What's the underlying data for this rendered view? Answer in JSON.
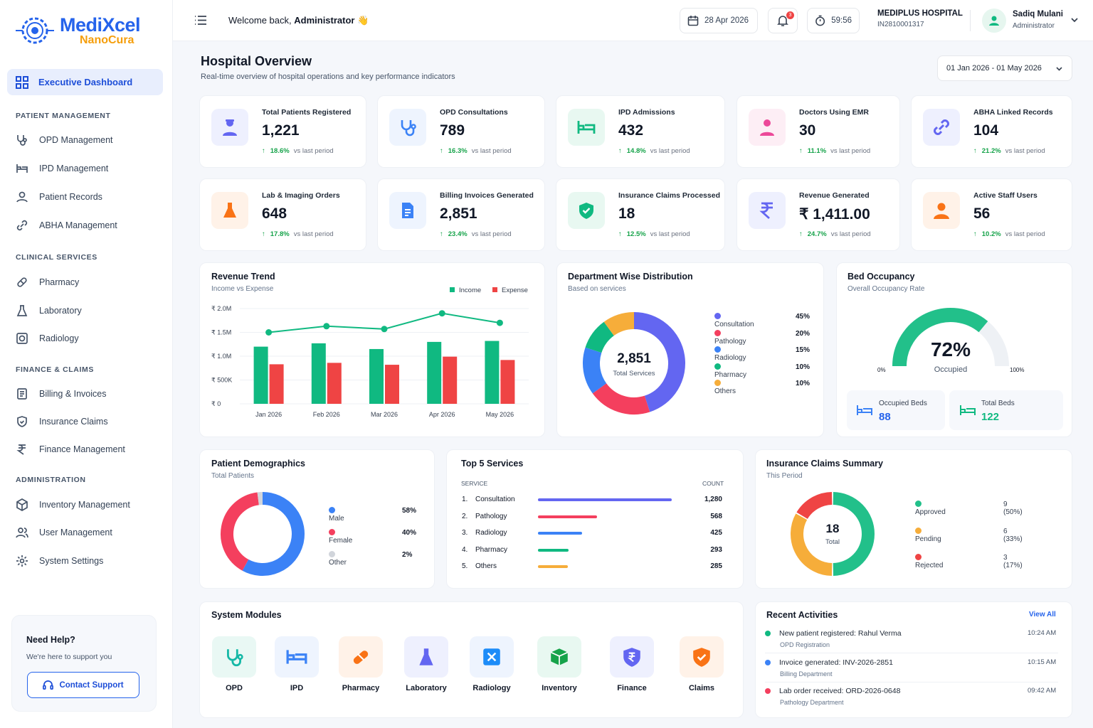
{
  "brand": {
    "name": "MediXcel",
    "sub": "NanoCura"
  },
  "nav": {
    "active": "Executive Dashboard",
    "sections": [
      "PATIENT MANAGEMENT",
      "CLINICAL SERVICES",
      "FINANCE & CLAIMS",
      "ADMINISTRATION"
    ],
    "items": [
      "OPD Management",
      "IPD Management",
      "Patient Records",
      "ABHA Management",
      "Pharmacy",
      "Laboratory",
      "Radiology",
      "Billing & Invoices",
      "Insurance Claims",
      "Finance Management",
      "Inventory Management",
      "User Management",
      "System Settings"
    ]
  },
  "help": {
    "title": "Need Help?",
    "subtitle": "We're here to support you",
    "button": "Contact Support"
  },
  "topbar": {
    "welcome": "Welcome back, ",
    "user_bold": "Administrator",
    "emoji": "👋",
    "date": "28 Apr 2026",
    "notif_count": "3",
    "timer": "59:56",
    "hospital": "MEDIPLUS HOSPITAL",
    "hospital_id": "IN2810001317",
    "user_name": "Sadiq Mulani",
    "user_role": "Administrator"
  },
  "page": {
    "title": "Hospital Overview",
    "subtitle": "Real-time overview of hospital operations and key performance indicators",
    "range": "01 Jan 2026 - 01 May 2026"
  },
  "kpis": [
    {
      "label": "Total Patients Registered",
      "value": "1,221",
      "change": "18.6%",
      "note": "vs last period",
      "icon": "doctor-icon",
      "color": "#6366f1",
      "bg": "#eef0fe"
    },
    {
      "label": "OPD Consultations",
      "value": "789",
      "change": "16.3%",
      "note": "vs last period",
      "icon": "stethoscope-icon",
      "color": "#3b82f6",
      "bg": "#eef4fe"
    },
    {
      "label": "IPD Admissions",
      "value": "432",
      "change": "14.8%",
      "note": "vs last period",
      "icon": "bed-icon",
      "color": "#10b981",
      "bg": "#e8f8f1"
    },
    {
      "label": "Doctors Using EMR",
      "value": "30",
      "change": "11.1%",
      "note": "vs last period",
      "icon": "doctor-emr-icon",
      "color": "#ec4899",
      "bg": "#fdeef5"
    },
    {
      "label": "ABHA Linked Records",
      "value": "104",
      "change": "21.2%",
      "note": "vs last period",
      "icon": "link-icon",
      "color": "#6366f1",
      "bg": "#eef0fe"
    },
    {
      "label": "Lab & Imaging Orders",
      "value": "648",
      "change": "17.8%",
      "note": "vs last period",
      "icon": "flask-icon",
      "color": "#f97316",
      "bg": "#fff2e8"
    },
    {
      "label": "Billing Invoices Generated",
      "value": "2,851",
      "change": "23.4%",
      "note": "vs last period",
      "icon": "invoice-icon",
      "color": "#3b82f6",
      "bg": "#eef4fe"
    },
    {
      "label": "Insurance Claims Processed",
      "value": "18",
      "change": "12.5%",
      "note": "vs last period",
      "icon": "shield-check-icon",
      "color": "#10b981",
      "bg": "#e8f8f1"
    },
    {
      "label": "Revenue Generated",
      "value": "₹ 1,411.00",
      "change": "24.7%",
      "note": "vs last period",
      "icon": "rupee-icon",
      "color": "#6366f1",
      "bg": "#eef0fe"
    },
    {
      "label": "Active Staff Users",
      "value": "56",
      "change": "10.2%",
      "note": "vs last period",
      "icon": "user-icon",
      "color": "#f97316",
      "bg": "#fff2e8"
    }
  ],
  "revenue": {
    "title": "Revenue Trend",
    "subtitle": "Income vs Expense",
    "legend_income": "Income",
    "legend_expense": "Expense"
  },
  "chart_data": [
    {
      "type": "bar",
      "title": "Revenue Trend",
      "subtitle": "Income vs Expense",
      "categories": [
        "Jan 2026",
        "Feb 2026",
        "Mar 2026",
        "Apr 2026",
        "May 2026"
      ],
      "series": [
        {
          "name": "Income",
          "values": [
            1200000,
            1270000,
            1150000,
            1300000,
            1320000
          ],
          "color": "#10b981"
        },
        {
          "name": "Expense",
          "values": [
            830000,
            860000,
            820000,
            990000,
            920000
          ],
          "color": "#ef4444"
        }
      ],
      "line": [
        1500000,
        1630000,
        1570000,
        1900000,
        1700000
      ],
      "yticks": [
        "₹ 0",
        "₹ 500K",
        "₹ 1.0M",
        "₹ 1.5M",
        "₹ 2.0M"
      ],
      "ylim": [
        0,
        2000000
      ],
      "grid": true,
      "legend": "top-right"
    },
    {
      "type": "pie",
      "title": "Department Wise Distribution",
      "center_value": "2,851",
      "center_label": "Total Services",
      "labels": [
        "Consultation",
        "Pathology",
        "Radiology",
        "Pharmacy",
        "Others"
      ],
      "values": [
        45,
        20,
        15,
        10,
        10
      ],
      "colors": [
        "#6366f1",
        "#f43f5e",
        "#3b82f6",
        "#10b981",
        "#f6ad3a"
      ]
    },
    {
      "type": "pie",
      "title": "Patient Demographics",
      "labels": [
        "Male",
        "Female",
        "Other"
      ],
      "values": [
        58,
        40,
        2
      ],
      "colors": [
        "#3b82f6",
        "#f43f5e",
        "#d1d5db"
      ]
    },
    {
      "type": "bar",
      "title": "Top 5 Services",
      "categories": [
        "Consultation",
        "Pathology",
        "Radiology",
        "Pharmacy",
        "Others"
      ],
      "values": [
        1280,
        568,
        425,
        293,
        285
      ],
      "colors": [
        "#6366f1",
        "#f43f5e",
        "#3b82f6",
        "#10b981",
        "#f6ad3a"
      ]
    },
    {
      "type": "pie",
      "title": "Insurance Claims Summary",
      "center_value": "18",
      "center_label": "Total",
      "labels": [
        "Approved",
        "Pending",
        "Rejected"
      ],
      "values": [
        9,
        6,
        3
      ],
      "colors": [
        "#22c08a",
        "#f6ad3a",
        "#ef4444"
      ]
    }
  ],
  "dept": {
    "title": "Department Wise Distribution",
    "subtitle": "Based on services",
    "total": "2,851",
    "total_label": "Total Services",
    "legend": [
      {
        "name": "Consultation",
        "pct": "45%"
      },
      {
        "name": "Pathology",
        "pct": "20%"
      },
      {
        "name": "Radiology",
        "pct": "15%"
      },
      {
        "name": "Pharmacy",
        "pct": "10%"
      },
      {
        "name": "Others",
        "pct": "10%"
      }
    ]
  },
  "beds": {
    "title": "Bed Occupancy",
    "subtitle": "Overall Occupancy Rate",
    "pct": "72%",
    "occupancy": 0.72,
    "label": "Occupied",
    "min": "0%",
    "max": "100%",
    "occupied_label": "Occupied Beds",
    "occupied": "88",
    "total_label": "Total Beds",
    "total": "122"
  },
  "demo": {
    "title": "Patient Demographics",
    "subtitle": "Total Patients",
    "legend": [
      {
        "name": "Male",
        "pct": "58%"
      },
      {
        "name": "Female",
        "pct": "40%"
      },
      {
        "name": "Other",
        "pct": "2%"
      }
    ]
  },
  "services": {
    "title": "Top 5 Services",
    "col1": "SERVICE",
    "col2": "COUNT",
    "rows": [
      {
        "n": "1.",
        "name": "Consultation",
        "count": "1,280"
      },
      {
        "n": "2.",
        "name": "Pathology",
        "count": "568"
      },
      {
        "n": "3.",
        "name": "Radiology",
        "count": "425"
      },
      {
        "n": "4.",
        "name": "Pharmacy",
        "count": "293"
      },
      {
        "n": "5.",
        "name": "Others",
        "count": "285"
      }
    ]
  },
  "claims": {
    "title": "Insurance Claims Summary",
    "subtitle": "This Period",
    "total": "18",
    "total_label": "Total",
    "legend": [
      {
        "name": "Approved",
        "val": "9 (50%)"
      },
      {
        "name": "Pending",
        "val": "6 (33%)"
      },
      {
        "name": "Rejected",
        "val": "3 (17%)"
      }
    ]
  },
  "modules": {
    "title": "System Modules",
    "items": [
      "OPD",
      "IPD",
      "Pharmacy",
      "Laboratory",
      "Radiology",
      "Inventory",
      "Finance",
      "Claims"
    ]
  },
  "activities": {
    "title": "Recent Activities",
    "view_all": "View All",
    "items": [
      {
        "text": "New patient registered: Rahul Verma",
        "sub": "OPD Registration",
        "time": "10:24 AM",
        "color": "#10b981"
      },
      {
        "text": "Invoice generated: INV-2026-2851",
        "sub": "Billing Department",
        "time": "10:15 AM",
        "color": "#3b82f6"
      },
      {
        "text": "Lab order received: ORD-2026-0648",
        "sub": "Pathology Department",
        "time": "09:42 AM",
        "color": "#f43f5e"
      }
    ]
  }
}
